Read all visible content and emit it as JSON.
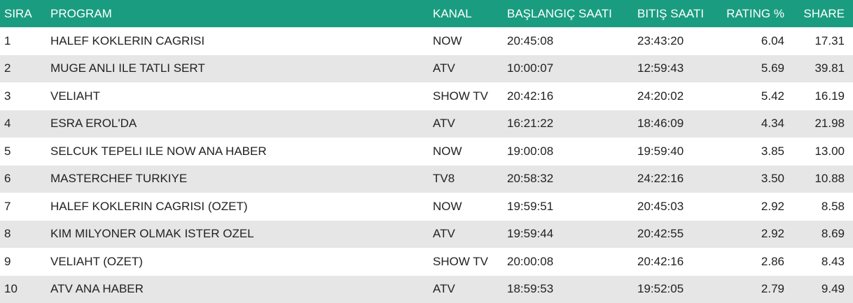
{
  "header": {
    "sira": "SIRA",
    "program": "PROGRAM",
    "kanal": "KANAL",
    "baslangic": "BAŞLANGIÇ SAATI",
    "bitis": "BITIŞ SAATI",
    "rating": "RATING %",
    "share": "SHARE"
  },
  "colors": {
    "header_bg": "#1a9c80",
    "row_alt_bg": "#e6e6e6"
  },
  "rows": [
    {
      "sira": "1",
      "program": "HALEF KOKLERIN CAGRISI",
      "kanal": "NOW",
      "baslangic": "20:45:08",
      "bitis": "23:43:20",
      "rating": "6.04",
      "share": "17.31"
    },
    {
      "sira": "2",
      "program": "MUGE ANLI ILE TATLI SERT",
      "kanal": "ATV",
      "baslangic": "10:00:07",
      "bitis": "12:59:43",
      "rating": "5.69",
      "share": "39.81"
    },
    {
      "sira": "3",
      "program": "VELIAHT",
      "kanal": "SHOW TV",
      "baslangic": "20:42:16",
      "bitis": "24:20:02",
      "rating": "5.42",
      "share": "16.19"
    },
    {
      "sira": "4",
      "program": "ESRA EROL'DA",
      "kanal": "ATV",
      "baslangic": "16:21:22",
      "bitis": "18:46:09",
      "rating": "4.34",
      "share": "21.98"
    },
    {
      "sira": "5",
      "program": "SELCUK TEPELI ILE NOW ANA HABER",
      "kanal": "NOW",
      "baslangic": "19:00:08",
      "bitis": "19:59:40",
      "rating": "3.85",
      "share": "13.00"
    },
    {
      "sira": "6",
      "program": "MASTERCHEF TURKIYE",
      "kanal": "TV8",
      "baslangic": "20:58:32",
      "bitis": "24:22:16",
      "rating": "3.50",
      "share": "10.88"
    },
    {
      "sira": "7",
      "program": "HALEF KOKLERIN CAGRISI (OZET)",
      "kanal": "NOW",
      "baslangic": "19:59:51",
      "bitis": "20:45:03",
      "rating": "2.92",
      "share": "8.58"
    },
    {
      "sira": "8",
      "program": "KIM MILYONER OLMAK ISTER OZEL",
      "kanal": "ATV",
      "baslangic": "19:59:44",
      "bitis": "20:42:55",
      "rating": "2.92",
      "share": "8.69"
    },
    {
      "sira": "9",
      "program": "VELIAHT (OZET)",
      "kanal": "SHOW TV",
      "baslangic": "20:00:08",
      "bitis": "20:42:16",
      "rating": "2.86",
      "share": "8.43"
    },
    {
      "sira": "10",
      "program": "ATV ANA HABER",
      "kanal": "ATV",
      "baslangic": "18:59:53",
      "bitis": "19:52:05",
      "rating": "2.79",
      "share": "9.49"
    }
  ]
}
